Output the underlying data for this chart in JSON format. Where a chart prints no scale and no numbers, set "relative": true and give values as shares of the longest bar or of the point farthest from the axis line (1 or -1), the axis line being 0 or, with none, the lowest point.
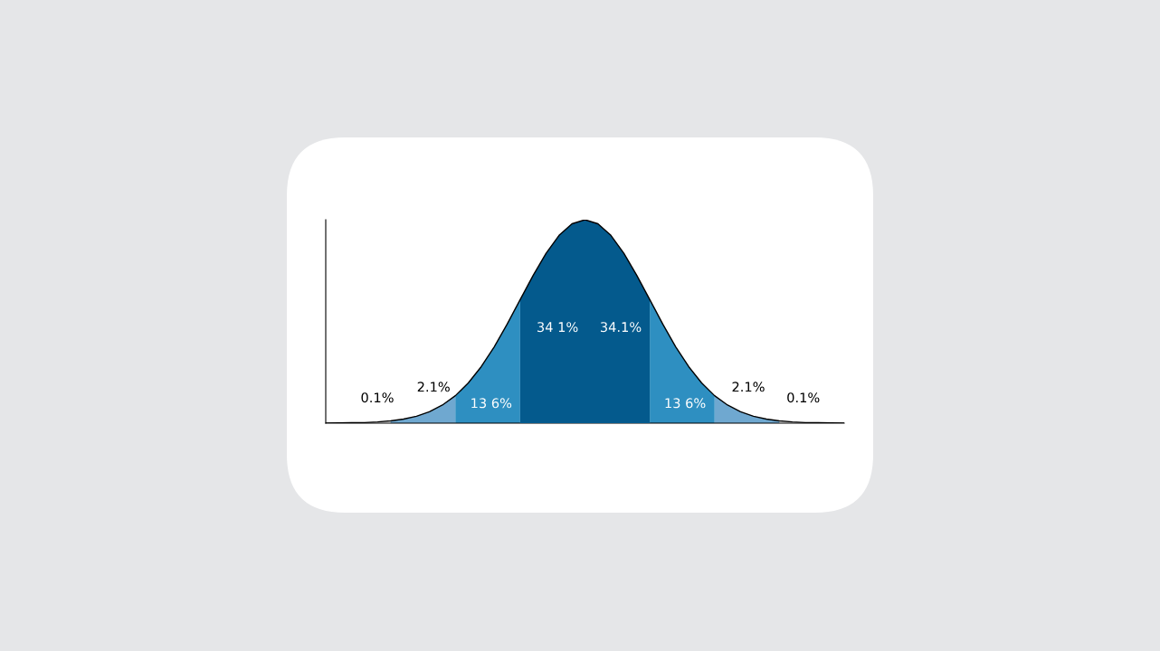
{
  "chart_data": {
    "type": "area",
    "relative": true,
    "legend": false,
    "categories": [
      null,
      null,
      null,
      null,
      null,
      null,
      null,
      null,
      null,
      null,
      null,
      null,
      null,
      null,
      null,
      null,
      null,
      null,
      null,
      null,
      null,
      null,
      null,
      null,
      null,
      null,
      null,
      null,
      null,
      null,
      null,
      null,
      null,
      null,
      null,
      null,
      null,
      null,
      null,
      null,
      null
    ],
    "series": [
      {
        "color": "#6fa8d0",
        "values": [
          null,
          null,
          null,
          null,
          null,
          0.011,
          0.02,
          0.034,
          0.056,
          0.089,
          0.135,
          null,
          null,
          null,
          null,
          null,
          null,
          null,
          null,
          null,
          null,
          null,
          null,
          null,
          null,
          null,
          null,
          null,
          null,
          null,
          0.135,
          0.089,
          0.056,
          0.034,
          0.02,
          0.011,
          null,
          null,
          null,
          null,
          null
        ]
      },
      {
        "color": "#2e8fc1",
        "values": [
          null,
          null,
          null,
          null,
          null,
          null,
          null,
          null,
          null,
          null,
          0.135,
          0.198,
          0.278,
          0.375,
          0.487,
          0.607,
          null,
          null,
          null,
          null,
          null,
          null,
          null,
          null,
          null,
          0.607,
          0.487,
          0.375,
          0.278,
          0.198,
          0.135,
          null,
          null,
          null,
          null,
          null,
          null,
          null,
          null,
          null,
          null
        ]
      },
      {
        "color": "#045a8d",
        "values": [
          null,
          null,
          null,
          null,
          null,
          null,
          null,
          null,
          null,
          null,
          null,
          null,
          null,
          null,
          null,
          0.607,
          0.726,
          0.835,
          0.923,
          0.98,
          1.0,
          0.98,
          0.923,
          0.835,
          0.726,
          0.607,
          null,
          null,
          null,
          null,
          null,
          null,
          null,
          null,
          null,
          null,
          null,
          null,
          null,
          null,
          null
        ]
      },
      {
        "type": "line",
        "color": "#000000",
        "values": [
          0.0,
          0.001,
          0.002,
          0.003,
          0.006,
          0.011,
          0.02,
          0.034,
          0.056,
          0.089,
          0.135,
          0.198,
          0.278,
          0.375,
          0.487,
          0.607,
          0.726,
          0.835,
          0.923,
          0.98,
          1.0,
          0.98,
          0.923,
          0.835,
          0.726,
          0.607,
          0.487,
          0.375,
          0.278,
          0.198,
          0.135,
          0.089,
          0.056,
          0.034,
          0.02,
          0.011,
          0.006,
          0.003,
          0.002,
          0.001,
          0.0
        ]
      }
    ],
    "annotations": [
      "0.1%",
      "2.1%",
      "13 6%",
      "34 1%",
      "34.1%",
      "13 6%",
      "2.1%",
      "0.1%"
    ]
  }
}
